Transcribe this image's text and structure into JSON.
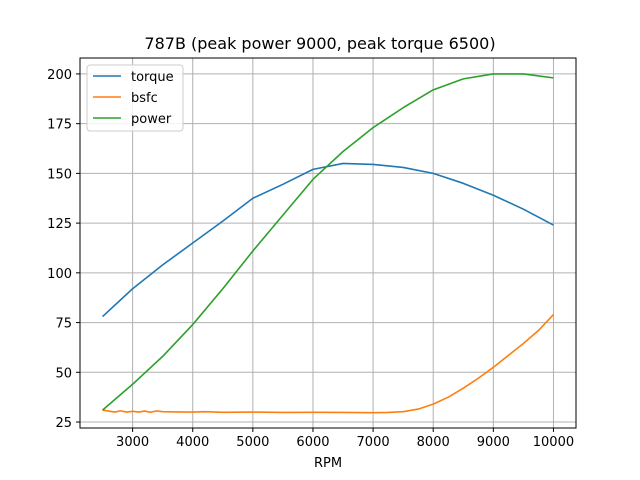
{
  "chart_data": {
    "type": "line",
    "title": "787B (peak power 9000, peak torque 6500)",
    "xlabel": "RPM",
    "ylabel": "",
    "xlim": [
      2125,
      10375
    ],
    "ylim": [
      22,
      208
    ],
    "xticks": [
      3000,
      4000,
      5000,
      6000,
      7000,
      8000,
      9000,
      10000
    ],
    "yticks": [
      25,
      50,
      75,
      100,
      125,
      150,
      175,
      200
    ],
    "grid": true,
    "legend_position": "upper-left",
    "series": [
      {
        "name": "torque",
        "color": "#1f77b4",
        "x": [
          2500,
          3000,
          3500,
          4000,
          4500,
          5000,
          5500,
          6000,
          6500,
          7000,
          7500,
          8000,
          8500,
          9000,
          9500,
          10000
        ],
        "y": [
          78,
          92,
          104,
          115,
          126,
          137.5,
          144.5,
          152,
          155,
          154.5,
          153,
          150,
          145,
          139,
          132,
          124
        ]
      },
      {
        "name": "bsfc",
        "color": "#ff7f0e",
        "x": [
          2500,
          2600,
          2700,
          2800,
          2900,
          3000,
          3100,
          3200,
          3300,
          3400,
          3500,
          3750,
          4000,
          4200,
          4500,
          5000,
          5500,
          6000,
          6500,
          7000,
          7250,
          7500,
          7750,
          8000,
          8250,
          8500,
          8750,
          9000,
          9250,
          9500,
          9750,
          10000
        ],
        "y": [
          31,
          30.5,
          30,
          30.6,
          30,
          30.4,
          30,
          30.5,
          29.9,
          30.6,
          30.2,
          30.1,
          30,
          30.2,
          29.9,
          30,
          29.8,
          29.9,
          29.8,
          29.7,
          29.8,
          30.2,
          31.5,
          34,
          37.5,
          42,
          47,
          52.5,
          58.5,
          64.5,
          71,
          79
        ]
      },
      {
        "name": "power",
        "color": "#2ca02c",
        "x": [
          2500,
          3000,
          3500,
          4000,
          4500,
          5000,
          5500,
          6000,
          6500,
          7000,
          7500,
          8000,
          8500,
          9000,
          9500,
          10000
        ],
        "y": [
          31,
          44,
          58,
          74,
          92,
          111,
          129,
          147,
          161,
          173,
          183,
          192,
          197.5,
          200,
          200,
          198
        ]
      }
    ]
  }
}
